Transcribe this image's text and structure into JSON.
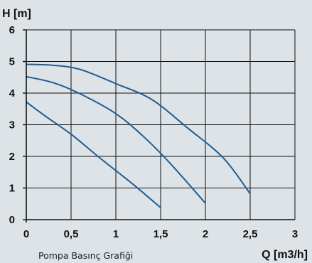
{
  "chart_data": {
    "type": "line",
    "ylabel": "H [m]",
    "xlabel": "Q [m3/h]",
    "caption": "Pompa Basınç Grafiği",
    "xlim": [
      0,
      3
    ],
    "ylim": [
      0,
      6
    ],
    "x_ticks": [
      {
        "value": 0,
        "label": "0"
      },
      {
        "value": 0.5,
        "label": "0,5"
      },
      {
        "value": 1,
        "label": "1"
      },
      {
        "value": 1.5,
        "label": "1,5"
      },
      {
        "value": 2,
        "label": "2"
      },
      {
        "value": 2.5,
        "label": "2,5"
      },
      {
        "value": 3,
        "label": "3"
      }
    ],
    "y_ticks": [
      {
        "value": 0,
        "label": "0"
      },
      {
        "value": 1,
        "label": "1"
      },
      {
        "value": 2,
        "label": "2"
      },
      {
        "value": 3,
        "label": "3"
      },
      {
        "value": 4,
        "label": "4"
      },
      {
        "value": 5,
        "label": "5"
      },
      {
        "value": 6,
        "label": "6"
      }
    ],
    "grid": true,
    "line_color": "#1f5e96",
    "grid_color": "#111111",
    "series": [
      {
        "points": [
          [
            0,
            3.72
          ],
          [
            0.2,
            3.3
          ],
          [
            0.5,
            2.7
          ],
          [
            0.8,
            2.0
          ],
          [
            1.0,
            1.55
          ],
          [
            1.2,
            1.1
          ],
          [
            1.5,
            0.38
          ]
        ]
      },
      {
        "points": [
          [
            0,
            4.52
          ],
          [
            0.3,
            4.33
          ],
          [
            0.6,
            3.98
          ],
          [
            1.0,
            3.35
          ],
          [
            1.3,
            2.65
          ],
          [
            1.6,
            1.8
          ],
          [
            2.0,
            0.52
          ]
        ]
      },
      {
        "points": [
          [
            0,
            4.91
          ],
          [
            0.3,
            4.88
          ],
          [
            0.6,
            4.75
          ],
          [
            1.0,
            4.3
          ],
          [
            1.4,
            3.8
          ],
          [
            1.8,
            2.9
          ],
          [
            2.2,
            1.95
          ],
          [
            2.5,
            0.82
          ]
        ]
      }
    ]
  }
}
